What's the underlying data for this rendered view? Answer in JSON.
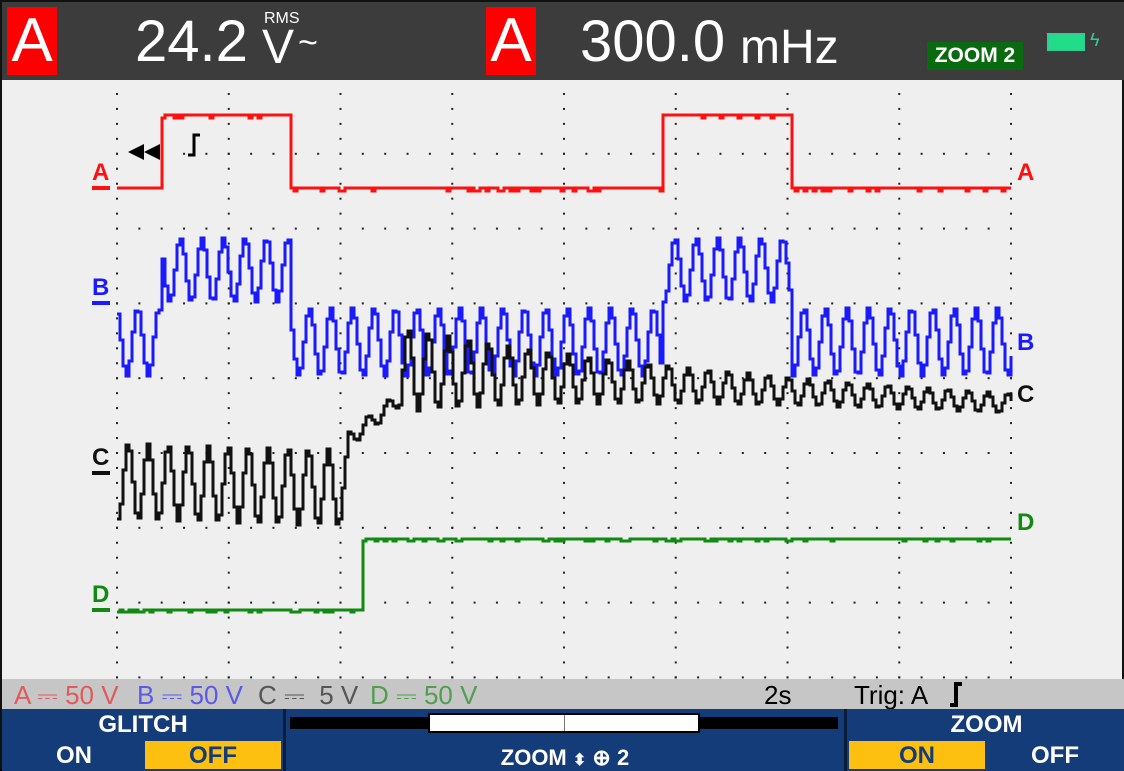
{
  "header": {
    "reading1": {
      "channel": "A",
      "value": "24.2",
      "unit": "V",
      "unit_symbol": "~",
      "qualifier": "RMS"
    },
    "reading2": {
      "channel": "A",
      "value": "300.0",
      "unit": "mHz"
    },
    "zoom_badge": "ZOOM 2",
    "battery_icon": "battery-charging-icon",
    "battery_level": 1.0
  },
  "channels": [
    {
      "label": "A",
      "color": "#ff1010"
    },
    {
      "label": "B",
      "color": "#1a1aff"
    },
    {
      "label": "C",
      "color": "#111111"
    },
    {
      "label": "D",
      "color": "#118a11"
    }
  ],
  "status": {
    "a_scale": "A ⎓ 50 V",
    "b_scale": "B ⎓ 50 V",
    "c_scale": "C ⎓  5 V",
    "d_scale": "D ⎓ 50 V",
    "timebase": "2s",
    "trigger": "Trig: A",
    "trigger_edge_icon": "rising-edge-icon",
    "colors": {
      "a": "#e05a5a",
      "b": "#5a5ae6",
      "c": "#555555",
      "d": "#4f9f4f"
    }
  },
  "softkeys": {
    "glitch": {
      "title": "GLITCH",
      "on": "ON",
      "off": "OFF",
      "selected": "OFF"
    },
    "zoom_control": {
      "label": "ZOOM",
      "value": "2",
      "icon": "zoom-in-icon"
    },
    "zoom": {
      "title": "ZOOM",
      "on": "ON",
      "off": "OFF",
      "selected": "ON"
    }
  }
}
